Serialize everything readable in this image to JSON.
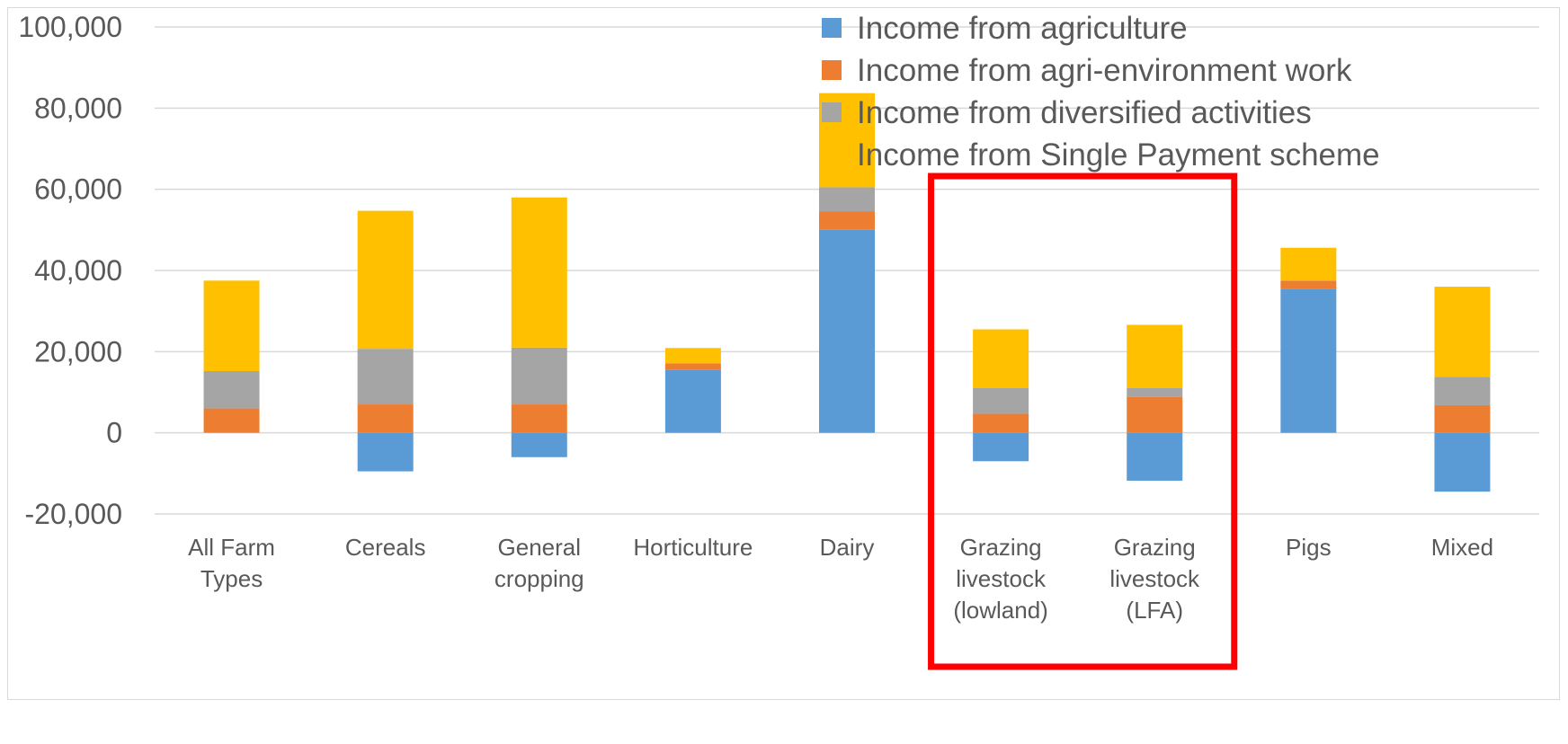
{
  "chart_data": {
    "type": "bar",
    "stacked": true,
    "categories": [
      [
        "All Farm",
        "Types"
      ],
      [
        "Cereals"
      ],
      [
        "General",
        "cropping"
      ],
      [
        "Horticulture"
      ],
      [
        "Dairy"
      ],
      [
        "Grazing",
        "livestock",
        "(lowland)"
      ],
      [
        "Grazing",
        "livestock",
        "(LFA)"
      ],
      [
        "Pigs"
      ],
      [
        "Mixed"
      ]
    ],
    "series": [
      {
        "name": "Income from agriculture",
        "color": "#5B9BD5",
        "values": [
          0,
          -9500,
          -6000,
          15500,
          50000,
          -7000,
          -11800,
          35500,
          -14500
        ]
      },
      {
        "name": "Income from agri-environment work",
        "color": "#ED7D31",
        "values": [
          6000,
          7000,
          7000,
          1600,
          4500,
          4700,
          8800,
          2000,
          6800
        ]
      },
      {
        "name": "Income from diversified activities",
        "color": "#A5A5A5",
        "values": [
          9200,
          13700,
          14000,
          0,
          6000,
          6300,
          2200,
          0,
          7000
        ]
      },
      {
        "name": "Income from Single Payment scheme",
        "color": "#FFC000",
        "values": [
          22300,
          34000,
          37000,
          3800,
          23200,
          14500,
          15600,
          8100,
          22200
        ]
      }
    ],
    "ylim": [
      -20000,
      100000
    ],
    "yticks": [
      -20000,
      0,
      20000,
      40000,
      60000,
      80000,
      100000
    ],
    "ytick_labels": [
      "-20,000",
      "0",
      "20,000",
      "40,000",
      "60,000",
      "80,000",
      "100,000"
    ],
    "grid": true,
    "legend_position": "top-right",
    "highlight": {
      "categories": [
        5,
        6
      ],
      "color": "#FF0000"
    },
    "xlabel": "",
    "ylabel": "",
    "title": ""
  }
}
